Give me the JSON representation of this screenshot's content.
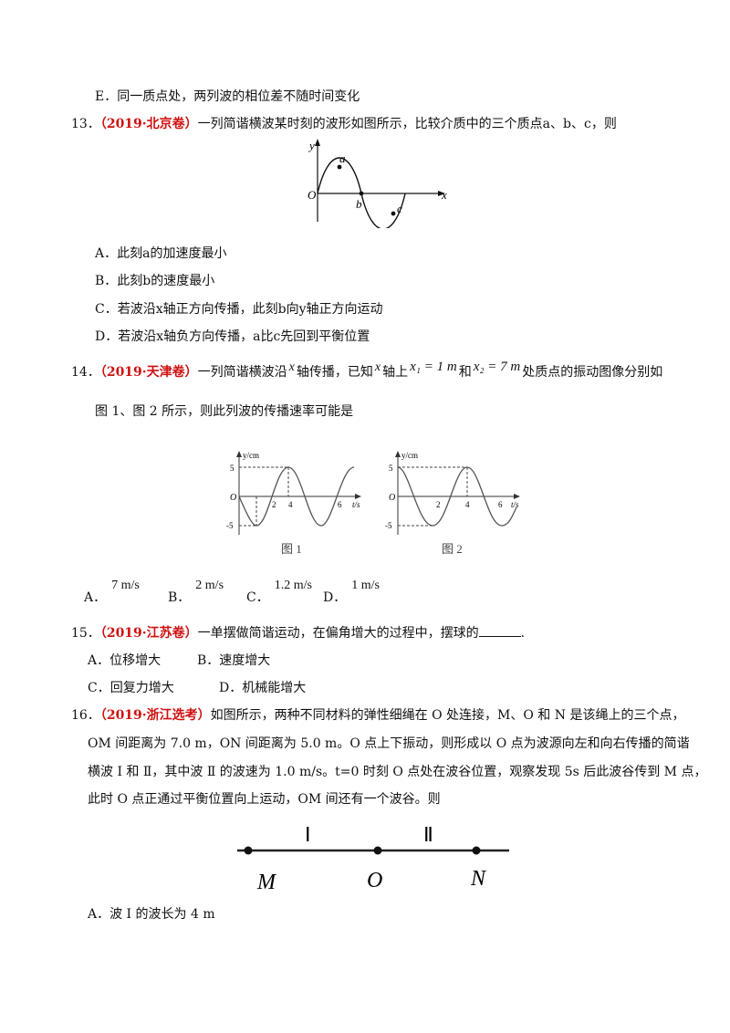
{
  "q12": {
    "option_e": "E．同一质点处，两列波的相位差不随时间变化"
  },
  "q13": {
    "number": "13．",
    "source": "（2019·北京卷）",
    "stem": "一列简谐横波某时刻的波形如图所示，比较介质中的三个质点a、b、c，则",
    "figure": {
      "y": "y",
      "x": "x",
      "o": "O",
      "a": "a",
      "b": "b",
      "c": "c"
    },
    "options": [
      "A．此刻a的加速度最小",
      "B．此刻b的速度最小",
      "C．若波沿x轴正方向传播，此刻b向y轴正方向运动",
      "D．若波沿x轴负方向传播，a比c先回到平衡位置"
    ]
  },
  "q14": {
    "number": "14．",
    "source": "（2019·天津卷）",
    "stem1": "一列简谐横波沿",
    "x": "x",
    "stem2": "轴传播，已知",
    "stem3": "轴上",
    "x1": "x₁ = 1 m",
    "he": "和",
    "x2": "x₂ = 7 m",
    "stem4": "处质点的振动图像分别如",
    "stem5": "图 1、图 2 所示，则此列波的传播速率可能是",
    "fig1": {
      "ylabel": "y/cm",
      "xlabel": "t/s",
      "o": "O",
      "y5": "5",
      "yn5": "-5",
      "t2": "2",
      "t4": "4",
      "t6": "6",
      "caption": "图 1"
    },
    "fig2": {
      "ylabel": "y/cm",
      "xlabel": "t/s",
      "o": "O",
      "y5": "5",
      "yn5": "-5",
      "t2": "2",
      "t4": "4",
      "t6": "6",
      "caption": "图 2"
    },
    "options": [
      {
        "letter": "A．",
        "value": "7 m/s"
      },
      {
        "letter": "B．",
        "value": "2 m/s"
      },
      {
        "letter": "C．",
        "value": "1.2 m/s"
      },
      {
        "letter": "D．",
        "value": "1 m/s"
      }
    ]
  },
  "q15": {
    "number": "15．",
    "source": "（2019·江苏卷）",
    "stem": "一单摆做简谐运动，在偏角增大的过程中，摆球的",
    "end": ".",
    "options": [
      "A．位移增大",
      "B．速度增大",
      "C．回复力增大",
      "D．机械能增大"
    ]
  },
  "q16": {
    "number": "16．",
    "source": "（2019·浙江选考）",
    "line1": "如图所示，两种不同材料的弹性细绳在 O 处连接，M、O 和 N 是该绳上的三个点，",
    "line2": "OM 间距离为 7.0  m，ON 间距离为 5.0  m。O 点上下振动，则形成以 O 点为波源向左和向右传播的简谐",
    "line3": "横波 Ⅰ 和 Ⅱ，其中波 Ⅱ 的波速为 1.0  m/s。t=0 时刻 O 点处在波谷位置，观察发现 5s 后此波谷传到 M 点，",
    "line4": "此时 O 点正通过平衡位置向上运动，OM 间还有一个波谷。则",
    "figure": {
      "wave1": "Ⅰ",
      "wave2": "Ⅱ",
      "m": "M",
      "o": "O",
      "n": "N"
    },
    "option_a": "A．波 Ⅰ 的波长为 4  m"
  }
}
